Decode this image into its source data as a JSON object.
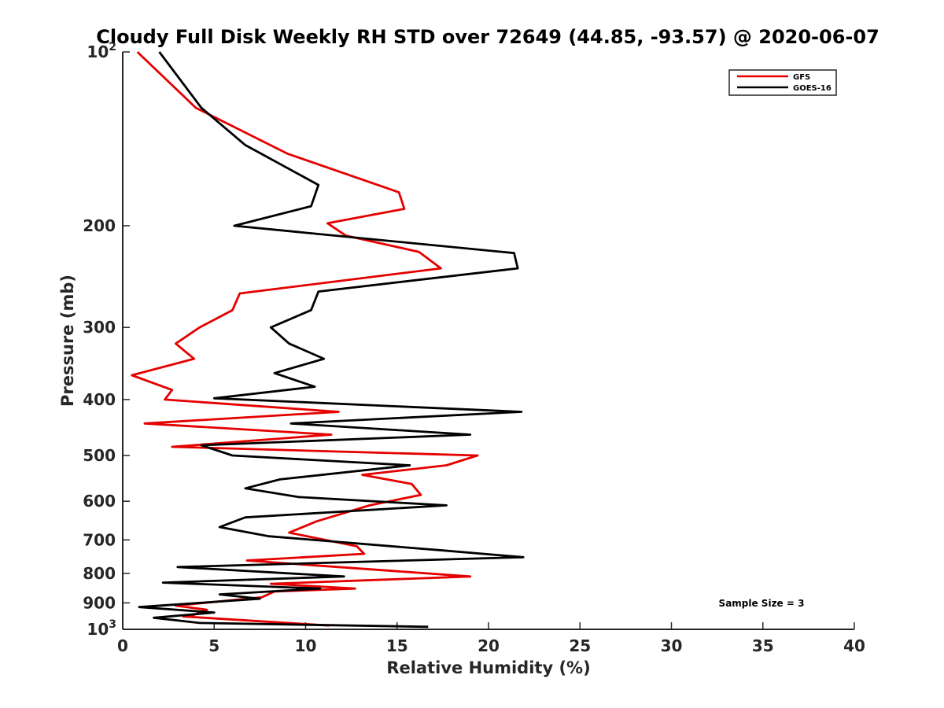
{
  "chart_data": {
    "type": "line",
    "title": "Cloudy Full Disk Weekly RH STD over 72649 (44.85, -93.57) @ 2020-06-07",
    "xlabel": "Relative Humidity (%)",
    "ylabel": "Pressure (mb)",
    "xlim": [
      0,
      40
    ],
    "ylim": [
      100,
      1000
    ],
    "y_scale": "log",
    "y_reversed": true,
    "grid": false,
    "x_ticks": [
      "0",
      "5",
      "10",
      "15",
      "20",
      "25",
      "30",
      "35",
      "40"
    ],
    "x_tick_values": [
      0,
      5,
      10,
      15,
      20,
      25,
      30,
      35,
      40
    ],
    "y_ticks": [
      {
        "value": 100,
        "base": "10",
        "exp": "2"
      },
      {
        "value": 200,
        "base": "200",
        "exp": ""
      },
      {
        "value": 300,
        "base": "300",
        "exp": ""
      },
      {
        "value": 400,
        "base": "400",
        "exp": ""
      },
      {
        "value": 500,
        "base": "500",
        "exp": ""
      },
      {
        "value": 600,
        "base": "600",
        "exp": ""
      },
      {
        "value": 700,
        "base": "700",
        "exp": ""
      },
      {
        "value": 800,
        "base": "800",
        "exp": ""
      },
      {
        "value": 900,
        "base": "900",
        "exp": ""
      },
      {
        "value": 1000,
        "base": "10",
        "exp": "3"
      }
    ],
    "legend_position": "top-right",
    "annotation": "Sample Size = 3",
    "series": [
      {
        "name": "GFS",
        "color": "#e50000",
        "points": [
          [
            0.8,
            100
          ],
          [
            4.0,
            125
          ],
          [
            9.0,
            150
          ],
          [
            15.1,
            175
          ],
          [
            15.4,
            187
          ],
          [
            11.2,
            198
          ],
          [
            12.2,
            208
          ],
          [
            16.2,
            222
          ],
          [
            17.4,
            237
          ],
          [
            6.4,
            262
          ],
          [
            6.0,
            280
          ],
          [
            4.2,
            300
          ],
          [
            2.9,
            320
          ],
          [
            3.9,
            340
          ],
          [
            0.5,
            363
          ],
          [
            2.7,
            385
          ],
          [
            2.3,
            400
          ],
          [
            11.8,
            420
          ],
          [
            1.2,
            440
          ],
          [
            11.4,
            460
          ],
          [
            2.7,
            483
          ],
          [
            19.4,
            500
          ],
          [
            17.7,
            520
          ],
          [
            13.1,
            540
          ],
          [
            15.8,
            560
          ],
          [
            16.3,
            585
          ],
          [
            13.5,
            610
          ],
          [
            10.6,
            650
          ],
          [
            9.1,
            680
          ],
          [
            12.8,
            718
          ],
          [
            13.2,
            740
          ],
          [
            6.8,
            760
          ],
          [
            19.0,
            810
          ],
          [
            8.1,
            834
          ],
          [
            12.7,
            850
          ],
          [
            8.3,
            860
          ],
          [
            7.6,
            880
          ],
          [
            2.9,
            910
          ],
          [
            4.6,
            925
          ],
          [
            3.9,
            944
          ],
          [
            3.3,
            950
          ],
          [
            11.3,
            985
          ]
        ]
      },
      {
        "name": "GOES-16",
        "color": "#000000",
        "points": [
          [
            2.0,
            100
          ],
          [
            4.3,
            125
          ],
          [
            6.7,
            145
          ],
          [
            10.7,
            170
          ],
          [
            10.3,
            185
          ],
          [
            6.1,
            200
          ],
          [
            21.4,
            223
          ],
          [
            21.6,
            237
          ],
          [
            10.7,
            260
          ],
          [
            10.3,
            280
          ],
          [
            8.1,
            300
          ],
          [
            9.1,
            320
          ],
          [
            11.0,
            340
          ],
          [
            8.3,
            360
          ],
          [
            10.5,
            380
          ],
          [
            5.0,
            398
          ],
          [
            21.8,
            420
          ],
          [
            9.2,
            440
          ],
          [
            19.0,
            460
          ],
          [
            4.3,
            480
          ],
          [
            6.0,
            500
          ],
          [
            15.7,
            520
          ],
          [
            8.6,
            550
          ],
          [
            6.7,
            570
          ],
          [
            9.6,
            590
          ],
          [
            17.7,
            610
          ],
          [
            6.7,
            640
          ],
          [
            5.3,
            665
          ],
          [
            8.0,
            690
          ],
          [
            17.5,
            730
          ],
          [
            21.9,
            750
          ],
          [
            3.0,
            780
          ],
          [
            12.1,
            810
          ],
          [
            2.2,
            830
          ],
          [
            10.8,
            850
          ],
          [
            5.3,
            870
          ],
          [
            7.5,
            885
          ],
          [
            0.9,
            915
          ],
          [
            5.0,
            935
          ],
          [
            1.7,
            955
          ],
          [
            4.2,
            975
          ],
          [
            16.7,
            990
          ]
        ]
      }
    ]
  }
}
